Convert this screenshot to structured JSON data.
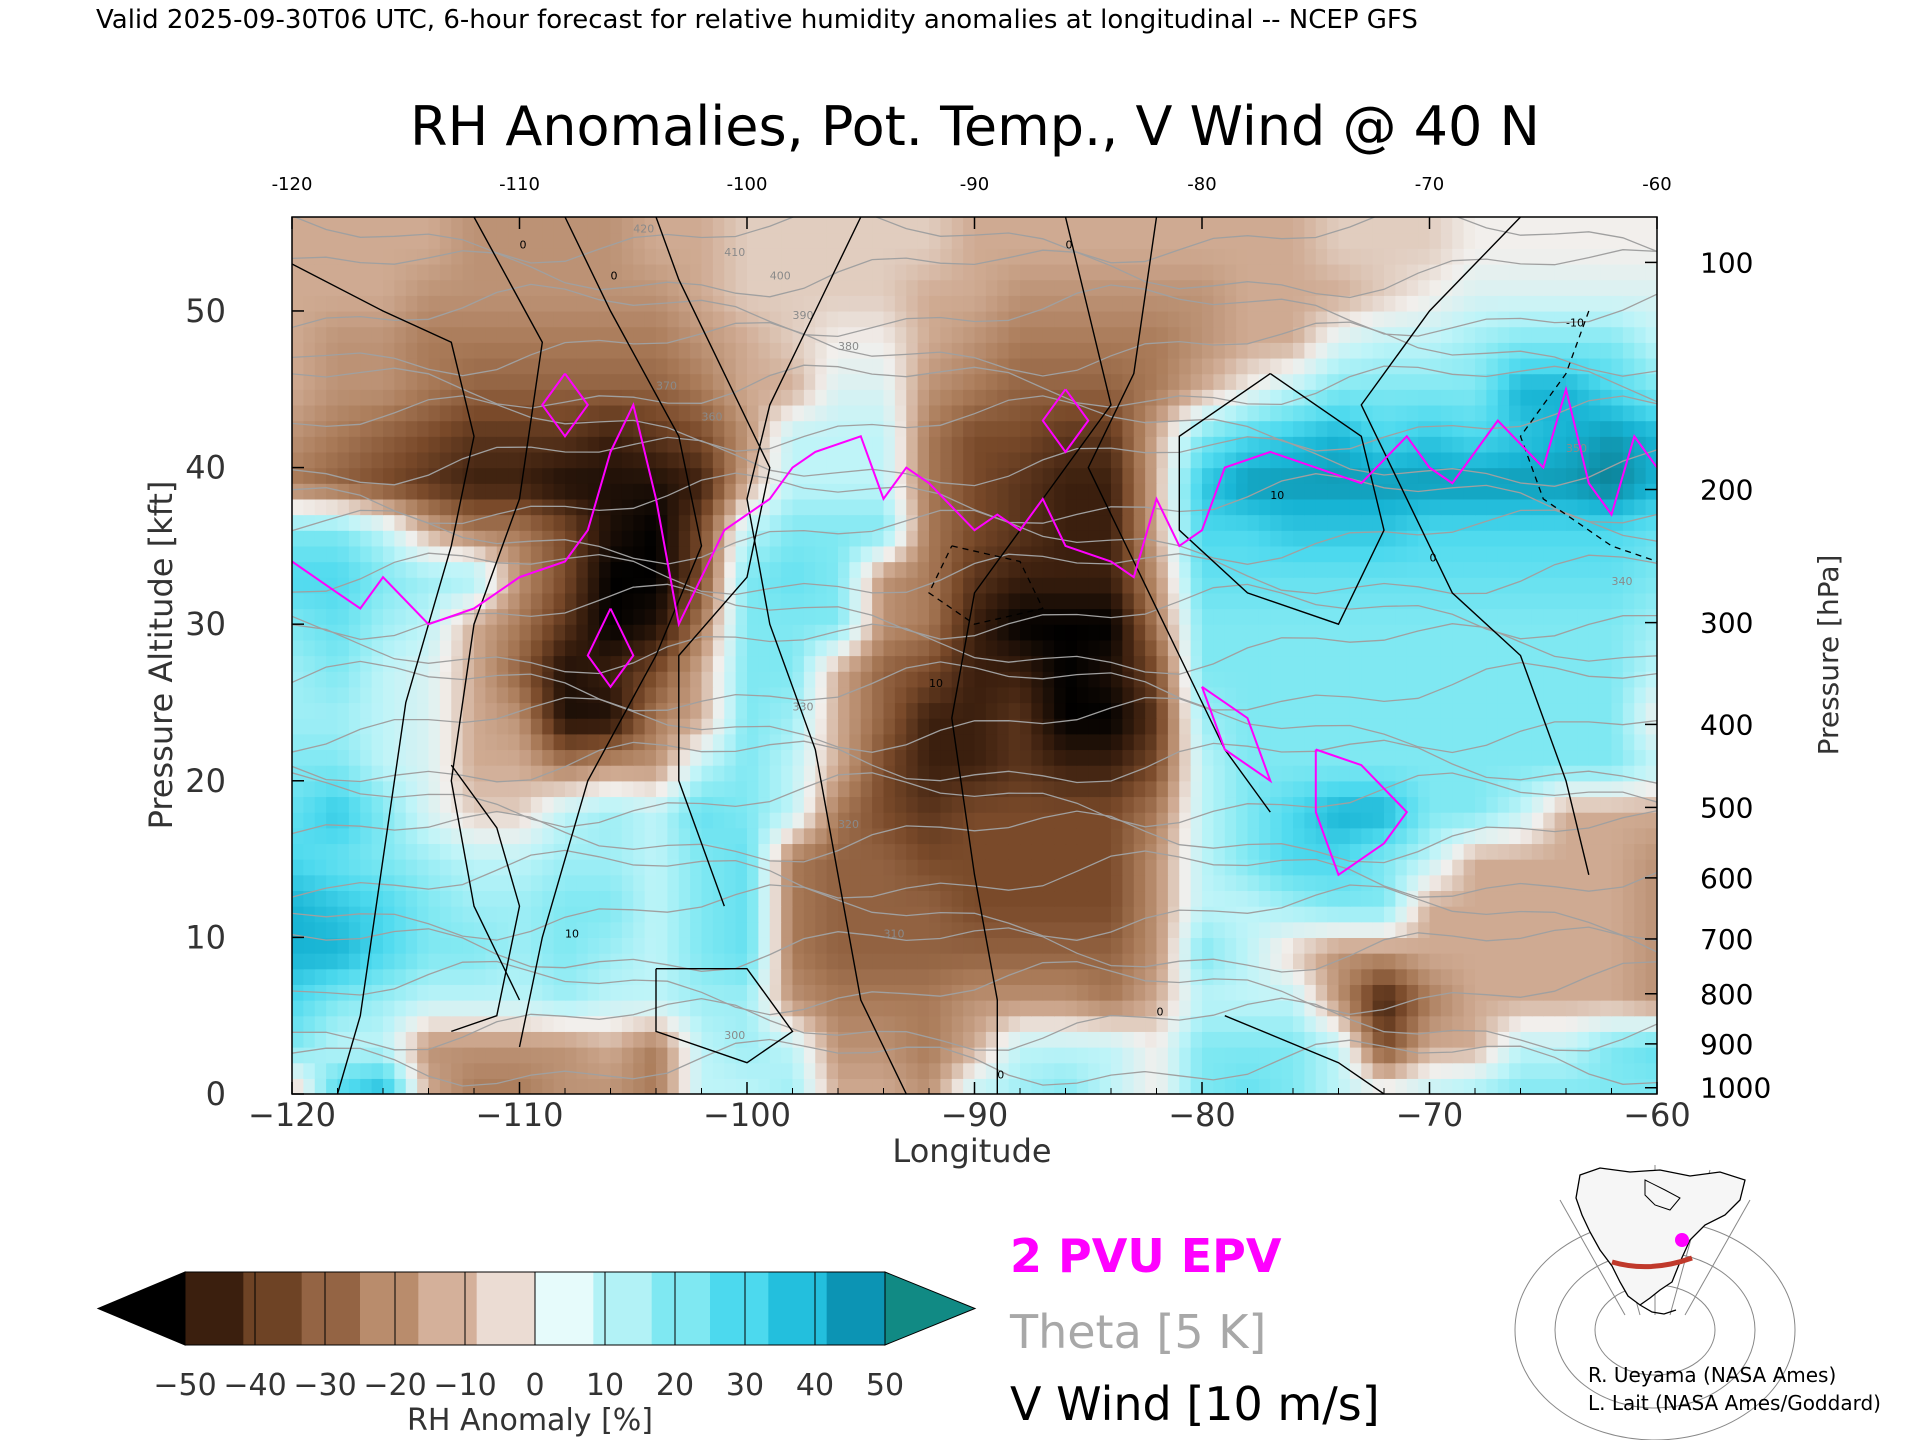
{
  "header": {
    "valid_line": "Valid 2025-09-30T06 UTC, 6-hour forecast for relative humidity anomalies at longitudinal -- NCEP GFS"
  },
  "chart_data": {
    "type": "heatmap",
    "title": "RH Anomalies, Pot. Temp., V Wind @ 40 N",
    "xlabel": "Longitude",
    "ylabel_left": "Pressure Altitude [kft]",
    "ylabel_right": "Pressure [hPa]",
    "xlim": [
      -120,
      -60
    ],
    "ylim": [
      0,
      56
    ],
    "x_ticks": [
      -120,
      -110,
      -100,
      -90,
      -80,
      -70,
      -60
    ],
    "x_tick_labels": [
      "−120",
      "−110",
      "−100",
      "−90",
      "−80",
      "−70",
      "−60"
    ],
    "top_tick_labels": [
      "-120",
      "-110",
      "-100",
      "-90",
      "-80",
      "-70",
      "-60"
    ],
    "y_ticks": [
      0,
      10,
      20,
      30,
      40,
      50
    ],
    "y_tick_labels": [
      "0",
      "10",
      "20",
      "30",
      "40",
      "50"
    ],
    "pressure_ticks": [
      {
        "hpa": 100,
        "kft": 53.1
      },
      {
        "hpa": 200,
        "kft": 38.6
      },
      {
        "hpa": 300,
        "kft": 30.1
      },
      {
        "hpa": 400,
        "kft": 23.6
      },
      {
        "hpa": 500,
        "kft": 18.3
      },
      {
        "hpa": 600,
        "kft": 13.8
      },
      {
        "hpa": 700,
        "kft": 9.9
      },
      {
        "hpa": 800,
        "kft": 6.4
      },
      {
        "hpa": 900,
        "kft": 3.2
      },
      {
        "hpa": 1000,
        "kft": 0.4
      }
    ],
    "rh_anomaly_grid": {
      "lon": [
        -120,
        -118,
        -116,
        -114,
        -112,
        -110,
        -108,
        -106,
        -104,
        -102,
        -100,
        -98,
        -96,
        -94,
        -92,
        -90,
        -88,
        -86,
        -84,
        -82,
        -80,
        -78,
        -76,
        -74,
        -72,
        -70,
        -68,
        -66,
        -64,
        -62,
        -60
      ],
      "alt_kft": [
        0,
        3,
        6,
        9,
        12,
        15,
        18,
        21,
        24,
        27,
        30,
        33,
        36,
        39,
        42,
        45,
        48,
        51,
        54
      ],
      "values": [
        [
          -10,
          30,
          40,
          -10,
          -20,
          -20,
          -15,
          -15,
          -20,
          10,
          10,
          15,
          -10,
          -10,
          -15,
          10,
          15,
          20,
          10,
          0,
          20,
          25,
          20,
          10,
          5,
          10,
          15,
          20,
          20,
          20,
          20
        ],
        [
          20,
          10,
          10,
          -15,
          -15,
          -15,
          -15,
          -10,
          -20,
          10,
          15,
          10,
          -15,
          -15,
          -20,
          -10,
          10,
          10,
          10,
          0,
          20,
          20,
          20,
          10,
          -30,
          -10,
          -10,
          10,
          10,
          20,
          25
        ],
        [
          30,
          20,
          15,
          10,
          10,
          10,
          15,
          10,
          10,
          15,
          15,
          -15,
          -20,
          -20,
          -20,
          -15,
          -15,
          -15,
          -20,
          -10,
          10,
          10,
          10,
          -15,
          -40,
          -20,
          -10,
          -10,
          -10,
          -10,
          -15
        ],
        [
          40,
          40,
          30,
          20,
          20,
          15,
          20,
          15,
          10,
          20,
          25,
          -20,
          -25,
          -25,
          -25,
          -25,
          -25,
          -25,
          -25,
          -15,
          20,
          10,
          -5,
          -15,
          -15,
          -10,
          -10,
          -10,
          -10,
          -10,
          -15
        ],
        [
          40,
          35,
          30,
          20,
          15,
          15,
          20,
          20,
          10,
          20,
          25,
          -20,
          -25,
          -25,
          -25,
          -30,
          -30,
          -30,
          -30,
          -15,
          10,
          10,
          15,
          20,
          20,
          -10,
          -10,
          -10,
          -10,
          -10,
          -15
        ],
        [
          30,
          25,
          20,
          15,
          10,
          10,
          15,
          15,
          10,
          20,
          25,
          -20,
          -25,
          -25,
          -30,
          -30,
          -30,
          -30,
          -30,
          -15,
          10,
          20,
          30,
          30,
          20,
          10,
          -10,
          -10,
          -10,
          -10,
          -15
        ],
        [
          25,
          35,
          20,
          5,
          -5,
          -5,
          10,
          15,
          10,
          25,
          20,
          10,
          -20,
          -30,
          -35,
          -30,
          -30,
          -30,
          -30,
          -20,
          10,
          20,
          30,
          40,
          40,
          20,
          20,
          10,
          -10,
          -10,
          -10
        ],
        [
          20,
          20,
          10,
          5,
          -10,
          -10,
          -20,
          -15,
          -15,
          10,
          20,
          10,
          -10,
          -30,
          -40,
          -40,
          -35,
          -40,
          -40,
          -30,
          10,
          20,
          20,
          20,
          20,
          20,
          20,
          20,
          20,
          20,
          10
        ],
        [
          15,
          15,
          10,
          5,
          -10,
          -15,
          -45,
          -45,
          -20,
          -10,
          20,
          15,
          -10,
          -25,
          -40,
          -40,
          -35,
          -50,
          -50,
          -35,
          15,
          20,
          20,
          20,
          20,
          20,
          20,
          20,
          20,
          20,
          0
        ],
        [
          15,
          20,
          10,
          5,
          -10,
          -25,
          -45,
          -40,
          -30,
          -10,
          20,
          20,
          -10,
          -25,
          -30,
          -40,
          -40,
          -50,
          -45,
          -30,
          20,
          20,
          20,
          20,
          20,
          20,
          20,
          20,
          20,
          20,
          10
        ],
        [
          20,
          25,
          15,
          10,
          -10,
          -20,
          -35,
          -50,
          -45,
          -20,
          20,
          20,
          20,
          -15,
          -20,
          -40,
          -50,
          -50,
          -50,
          -20,
          20,
          20,
          20,
          20,
          20,
          20,
          20,
          20,
          20,
          20,
          15
        ],
        [
          30,
          30,
          20,
          15,
          15,
          -15,
          -30,
          -50,
          -50,
          -30,
          20,
          25,
          20,
          -15,
          -20,
          -35,
          -40,
          -40,
          -40,
          -15,
          25,
          25,
          25,
          25,
          25,
          25,
          25,
          25,
          25,
          25,
          20
        ],
        [
          20,
          20,
          10,
          -10,
          -20,
          -20,
          -30,
          -45,
          -50,
          -30,
          10,
          20,
          20,
          20,
          -20,
          -30,
          -35,
          -40,
          -40,
          -10,
          30,
          30,
          35,
          35,
          35,
          30,
          30,
          30,
          30,
          30,
          25
        ],
        [
          -20,
          -25,
          -30,
          -35,
          -40,
          -40,
          -45,
          -45,
          -45,
          -40,
          -10,
          10,
          10,
          10,
          -20,
          -30,
          -35,
          -40,
          -40,
          -10,
          35,
          45,
          45,
          45,
          45,
          45,
          45,
          45,
          45,
          50,
          40
        ],
        [
          -15,
          -20,
          -25,
          -30,
          -35,
          -35,
          -35,
          -40,
          -35,
          -30,
          -15,
          10,
          10,
          10,
          -20,
          -30,
          -30,
          -35,
          -35,
          -10,
          20,
          30,
          35,
          40,
          30,
          35,
          30,
          35,
          40,
          45,
          40
        ],
        [
          -10,
          -15,
          -15,
          -20,
          -25,
          -25,
          -25,
          -25,
          -25,
          -20,
          -10,
          -10,
          5,
          5,
          -15,
          -20,
          -25,
          -25,
          -25,
          -20,
          -10,
          0,
          10,
          20,
          20,
          20,
          20,
          40,
          40,
          30,
          20
        ],
        [
          -10,
          -15,
          -15,
          -20,
          -20,
          -20,
          -20,
          -20,
          -20,
          -15,
          -10,
          -5,
          0,
          0,
          -10,
          -15,
          -20,
          -20,
          -20,
          -20,
          -15,
          -10,
          -10,
          5,
          10,
          10,
          15,
          20,
          20,
          20,
          10
        ],
        [
          -10,
          -10,
          -10,
          -15,
          -15,
          -15,
          -15,
          -15,
          -15,
          -10,
          -5,
          -5,
          -5,
          -5,
          -10,
          -10,
          -15,
          -15,
          -15,
          -15,
          -15,
          -10,
          -10,
          -10,
          -5,
          0,
          5,
          5,
          5,
          5,
          5
        ],
        [
          -10,
          -10,
          -10,
          -10,
          -15,
          -15,
          -15,
          -15,
          -10,
          -10,
          -5,
          -5,
          -5,
          -5,
          -5,
          -10,
          -10,
          -10,
          -10,
          -10,
          -10,
          -10,
          -10,
          -5,
          -5,
          -5,
          0,
          0,
          0,
          0,
          0
        ]
      ]
    },
    "theta_contour_labels_k": [
      420,
      410,
      400,
      390,
      380,
      370,
      360,
      350,
      340,
      330,
      320,
      310,
      300
    ],
    "v_wind_contour_labels": [
      "0",
      "10",
      "-10"
    ],
    "legend": {
      "epv": "2 PVU EPV",
      "theta": "Theta [5 K]",
      "vwind": "V Wind [10 m/s]"
    },
    "colorbar": {
      "label": "RH Anomaly [%]",
      "tick_labels": [
        "−50",
        "−40",
        "−30",
        "−20",
        "−10",
        "0",
        "10",
        "20",
        "30",
        "40",
        "50"
      ],
      "tick_values": [
        -50,
        -40,
        -30,
        -20,
        -10,
        0,
        10,
        20,
        30,
        40,
        50
      ],
      "colors": [
        "#000000",
        "#3b1f0e",
        "#6e4325",
        "#946444",
        "#b98c6c",
        "#d4b09a",
        "#ebdcd3",
        "#e6fbfb",
        "#b2f2f6",
        "#7fe8f2",
        "#4cd9ee",
        "#23bfdd",
        "#0c94b4",
        "#118a84"
      ]
    },
    "colors": {
      "epv": "#ff00ff",
      "theta": "#a0a0a0",
      "wind": "#000000",
      "map_section": "#c0392b"
    }
  },
  "credits": {
    "line1": "R. Ueyama (NASA Ames)",
    "line2": "L. Lait (NASA Ames/Goddard)"
  }
}
